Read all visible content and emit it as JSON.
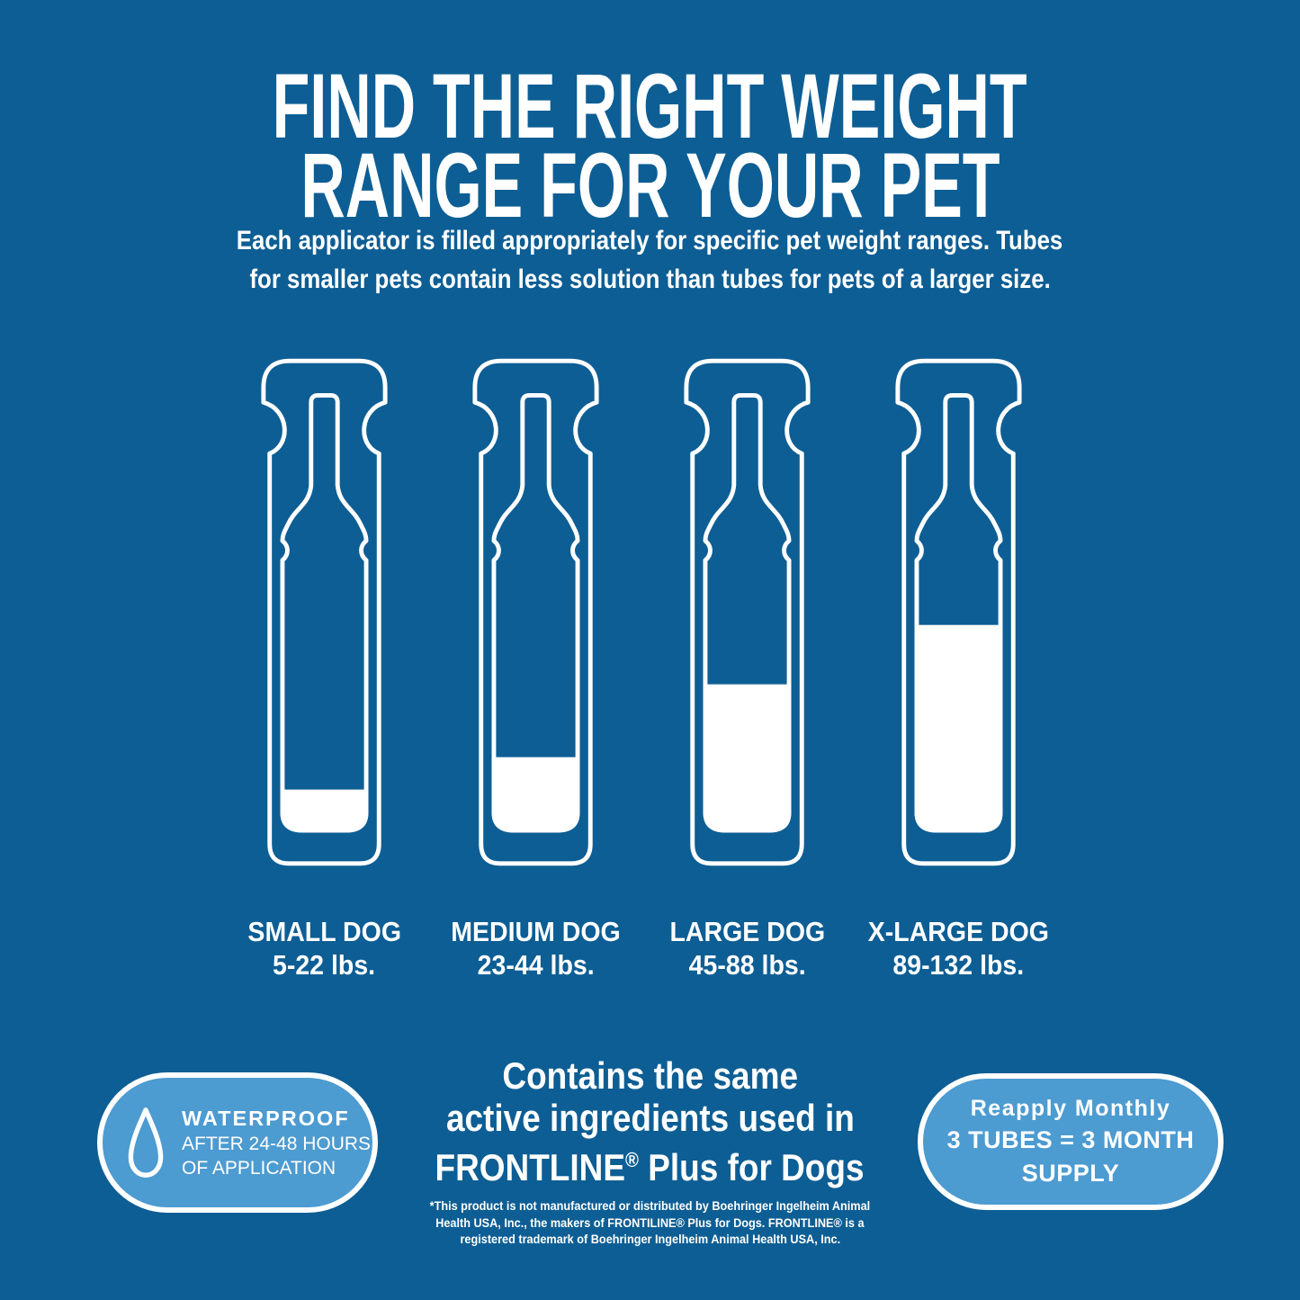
{
  "theme": {
    "background": "#0d5e94",
    "badge_fill": "#4c9bd1",
    "text": "#ffffff"
  },
  "header": {
    "title_lines": [
      "FIND THE RIGHT WEIGHT",
      "RANGE FOR YOUR PET"
    ],
    "subtitle_lines": [
      "Each applicator is filled appropriately for specific pet weight ranges. Tubes",
      "for smaller pets contain less solution than tubes for pets of a larger size."
    ]
  },
  "tubes": [
    {
      "name": "SMALL DOG",
      "range": "5-22 lbs.",
      "fill_percent": 15
    },
    {
      "name": "MEDIUM DOG",
      "range": "23-44 lbs.",
      "fill_percent": 27
    },
    {
      "name": "LARGE DOG",
      "range": "45-88 lbs.",
      "fill_percent": 54
    },
    {
      "name": "X-LARGE DOG",
      "range": "89-132 lbs.",
      "fill_percent": 76
    }
  ],
  "footer": {
    "waterproof_badge": {
      "icon": "water-droplet-icon",
      "title": "WATERPROOF",
      "subtitle_lines": [
        "AFTER 24-48 HOURS",
        "OF APPLICATION"
      ]
    },
    "claim": {
      "lines": [
        "Contains the same",
        "active ingredients used in"
      ],
      "brand_line": {
        "brand": "FRONTLINE",
        "reg_mark": "®",
        "rest": " Plus for Dogs"
      }
    },
    "disclaimer_lines": [
      "*This product is not manufactured or distributed by Boehringer Ingelheim Animal",
      "Health USA, Inc., the makers of FRONTILINE® Plus for Dogs. FRONTLINE® is a",
      "registered trademark of Boehringer Ingelheim Animal Health USA, Inc."
    ],
    "supply_badge": {
      "title": "Reapply Monthly",
      "lines": [
        "3 TUBES = 3 MONTH",
        "SUPPLY"
      ]
    }
  }
}
